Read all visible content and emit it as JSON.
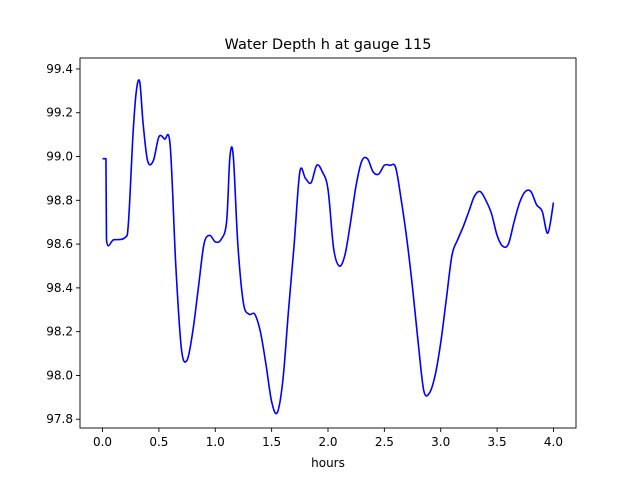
{
  "chart_data": {
    "type": "line",
    "title": "Water Depth h at gauge 115",
    "xlabel": "hours",
    "ylabel": "",
    "xlim": [
      -0.2,
      4.2
    ],
    "ylim": [
      97.76,
      99.45
    ],
    "xticks": [
      0.0,
      0.5,
      1.0,
      1.5,
      2.0,
      2.5,
      3.0,
      3.5,
      4.0
    ],
    "xtick_labels": [
      "0.0",
      "0.5",
      "1.0",
      "1.5",
      "2.0",
      "2.5",
      "3.0",
      "3.5",
      "4.0"
    ],
    "yticks": [
      97.8,
      98.0,
      98.2,
      98.4,
      98.6,
      98.8,
      99.0,
      99.2,
      99.4
    ],
    "ytick_labels": [
      "97.8",
      "98.0",
      "98.2",
      "98.4",
      "98.6",
      "98.8",
      "99.0",
      "99.2",
      "99.4"
    ],
    "grid": false,
    "line_color": "#0000ff",
    "series": [
      {
        "x": [
          0.0,
          0.03,
          0.035,
          0.1,
          0.2,
          0.23,
          0.27,
          0.3,
          0.33,
          0.36,
          0.4,
          0.45,
          0.5,
          0.55,
          0.6,
          0.65,
          0.7,
          0.75,
          0.8,
          0.85,
          0.9,
          0.95,
          1.0,
          1.05,
          1.1,
          1.13,
          1.16,
          1.2,
          1.25,
          1.3,
          1.35,
          1.4,
          1.45,
          1.5,
          1.55,
          1.6,
          1.65,
          1.7,
          1.75,
          1.8,
          1.85,
          1.9,
          1.95,
          2.0,
          2.05,
          2.1,
          2.15,
          2.2,
          2.25,
          2.3,
          2.35,
          2.4,
          2.45,
          2.5,
          2.55,
          2.6,
          2.65,
          2.7,
          2.75,
          2.8,
          2.85,
          2.9,
          2.95,
          3.0,
          3.05,
          3.1,
          3.15,
          3.2,
          3.25,
          3.3,
          3.35,
          3.4,
          3.45,
          3.5,
          3.55,
          3.6,
          3.65,
          3.7,
          3.75,
          3.8,
          3.85,
          3.9,
          3.95,
          4.0
        ],
        "values": [
          98.99,
          98.99,
          98.62,
          98.62,
          98.63,
          98.7,
          99.1,
          99.3,
          99.34,
          99.15,
          98.98,
          98.98,
          99.09,
          99.08,
          99.05,
          98.5,
          98.12,
          98.07,
          98.2,
          98.4,
          98.6,
          98.64,
          98.61,
          98.62,
          98.7,
          99.0,
          99.0,
          98.6,
          98.33,
          98.28,
          98.28,
          98.2,
          98.05,
          97.88,
          97.83,
          97.98,
          98.3,
          98.6,
          98.93,
          98.9,
          98.88,
          98.96,
          98.93,
          98.85,
          98.58,
          98.5,
          98.55,
          98.7,
          98.87,
          98.98,
          98.99,
          98.93,
          98.92,
          98.96,
          98.96,
          98.95,
          98.8,
          98.62,
          98.4,
          98.15,
          97.93,
          97.92,
          98.0,
          98.15,
          98.35,
          98.55,
          98.62,
          98.68,
          98.75,
          98.82,
          98.84,
          98.8,
          98.74,
          98.64,
          98.59,
          98.6,
          98.7,
          98.79,
          98.84,
          98.84,
          98.78,
          98.75,
          98.65,
          98.79
        ]
      }
    ]
  }
}
